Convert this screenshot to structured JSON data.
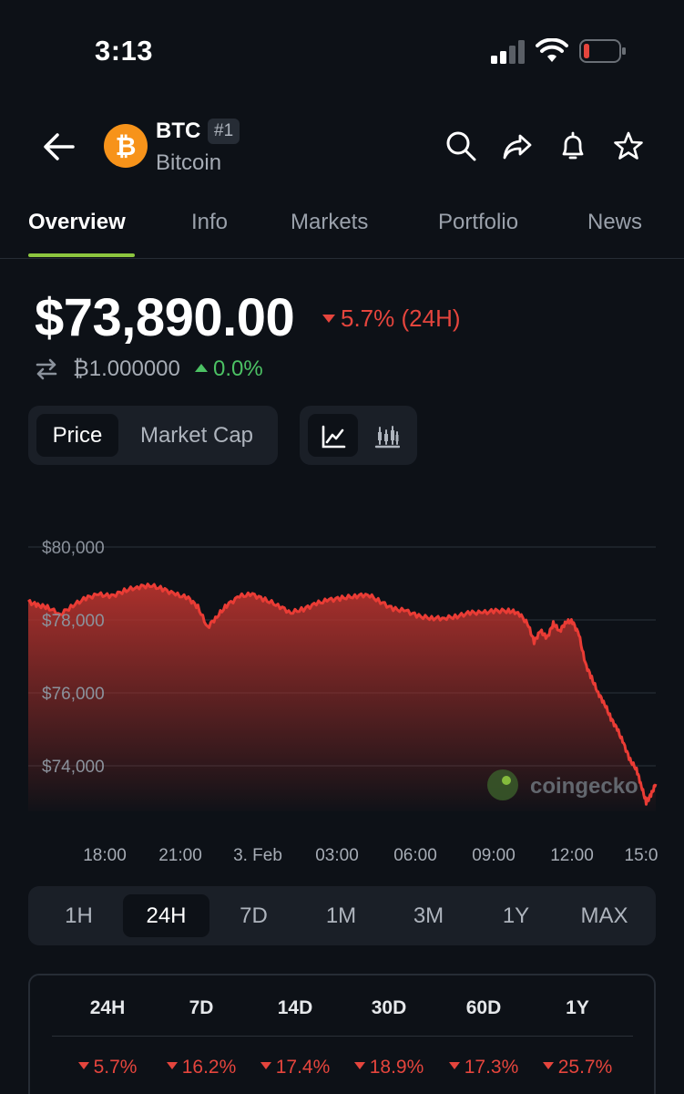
{
  "status_bar": {
    "time": "3:13"
  },
  "header": {
    "coin_symbol": "BTC",
    "rank": "#1",
    "coin_name": "Bitcoin",
    "logo_glyph": "₿",
    "icons": [
      "back-arrow-icon",
      "search-icon",
      "share-icon",
      "bell-icon",
      "star-icon"
    ]
  },
  "tabs": [
    "Overview",
    "Info",
    "Markets",
    "Portfolio",
    "News"
  ],
  "price": {
    "value": "$73,890.00",
    "change": "5.7% (24H)",
    "btc_value": "₿1.000000",
    "btc_change": "0.0%"
  },
  "metric_toggle": [
    "Price",
    "Market Cap"
  ],
  "chart_data": {
    "type": "area",
    "watermark": "coingecko",
    "y_ticks": [
      "$80,000",
      "$78,000",
      "$76,000",
      "$74,000"
    ],
    "y_tick_values": [
      80000,
      78000,
      76000,
      74000
    ],
    "x_ticks": [
      "18:00",
      "21:00",
      "3. Feb",
      "03:00",
      "06:00",
      "09:00",
      "12:00",
      "15:0"
    ],
    "x_range": [
      16.0,
      15.9
    ],
    "ylim": [
      73000,
      80000
    ],
    "line_color": "#ea3c35",
    "points": [
      [
        0,
        78500
      ],
      [
        0.3,
        78400
      ],
      [
        0.6,
        78350
      ],
      [
        1.0,
        78150
      ],
      [
        1.4,
        78400
      ],
      [
        1.8,
        78600
      ],
      [
        2.2,
        78700
      ],
      [
        2.6,
        78650
      ],
      [
        3.0,
        78800
      ],
      [
        3.4,
        78900
      ],
      [
        3.8,
        78950
      ],
      [
        4.2,
        78850
      ],
      [
        4.6,
        78700
      ],
      [
        5.0,
        78600
      ],
      [
        5.3,
        78350
      ],
      [
        5.6,
        77800
      ],
      [
        5.9,
        78100
      ],
      [
        6.2,
        78400
      ],
      [
        6.6,
        78650
      ],
      [
        7.0,
        78700
      ],
      [
        7.4,
        78550
      ],
      [
        7.8,
        78400
      ],
      [
        8.2,
        78200
      ],
      [
        8.6,
        78300
      ],
      [
        9.0,
        78450
      ],
      [
        9.4,
        78550
      ],
      [
        9.8,
        78600
      ],
      [
        10.2,
        78650
      ],
      [
        10.6,
        78700
      ],
      [
        11.0,
        78500
      ],
      [
        11.4,
        78300
      ],
      [
        11.8,
        78250
      ],
      [
        12.2,
        78100
      ],
      [
        12.6,
        78050
      ],
      [
        13.0,
        78050
      ],
      [
        13.4,
        78100
      ],
      [
        13.8,
        78200
      ],
      [
        14.2,
        78200
      ],
      [
        14.6,
        78250
      ],
      [
        15.0,
        78250
      ],
      [
        15.3,
        78200
      ],
      [
        15.6,
        77900
      ],
      [
        15.8,
        77400
      ],
      [
        16.0,
        77700
      ],
      [
        16.2,
        77500
      ],
      [
        16.4,
        77900
      ],
      [
        16.6,
        77700
      ],
      [
        16.8,
        77950
      ],
      [
        17.0,
        77950
      ],
      [
        17.2,
        77600
      ],
      [
        17.4,
        76800
      ],
      [
        17.6,
        76400
      ],
      [
        17.8,
        76000
      ],
      [
        18.0,
        75700
      ],
      [
        18.2,
        75300
      ],
      [
        18.4,
        75000
      ],
      [
        18.6,
        74600
      ],
      [
        18.8,
        74150
      ],
      [
        19.0,
        73900
      ],
      [
        19.15,
        73450
      ],
      [
        19.3,
        73000
      ],
      [
        19.45,
        73200
      ],
      [
        19.6,
        73500
      ]
    ],
    "x_max": 19.6
  },
  "ranges": [
    "1H",
    "24H",
    "7D",
    "1M",
    "3M",
    "1Y",
    "MAX"
  ],
  "performance": {
    "headers": [
      "24H",
      "7D",
      "14D",
      "30D",
      "60D",
      "1Y"
    ],
    "values": [
      "5.7%",
      "16.2%",
      "17.4%",
      "18.9%",
      "17.3%",
      "25.7%"
    ]
  },
  "colors": {
    "up": "#4cc264",
    "down": "#e5453d",
    "accent": "#8dc63f",
    "btc": "#f7931a"
  }
}
